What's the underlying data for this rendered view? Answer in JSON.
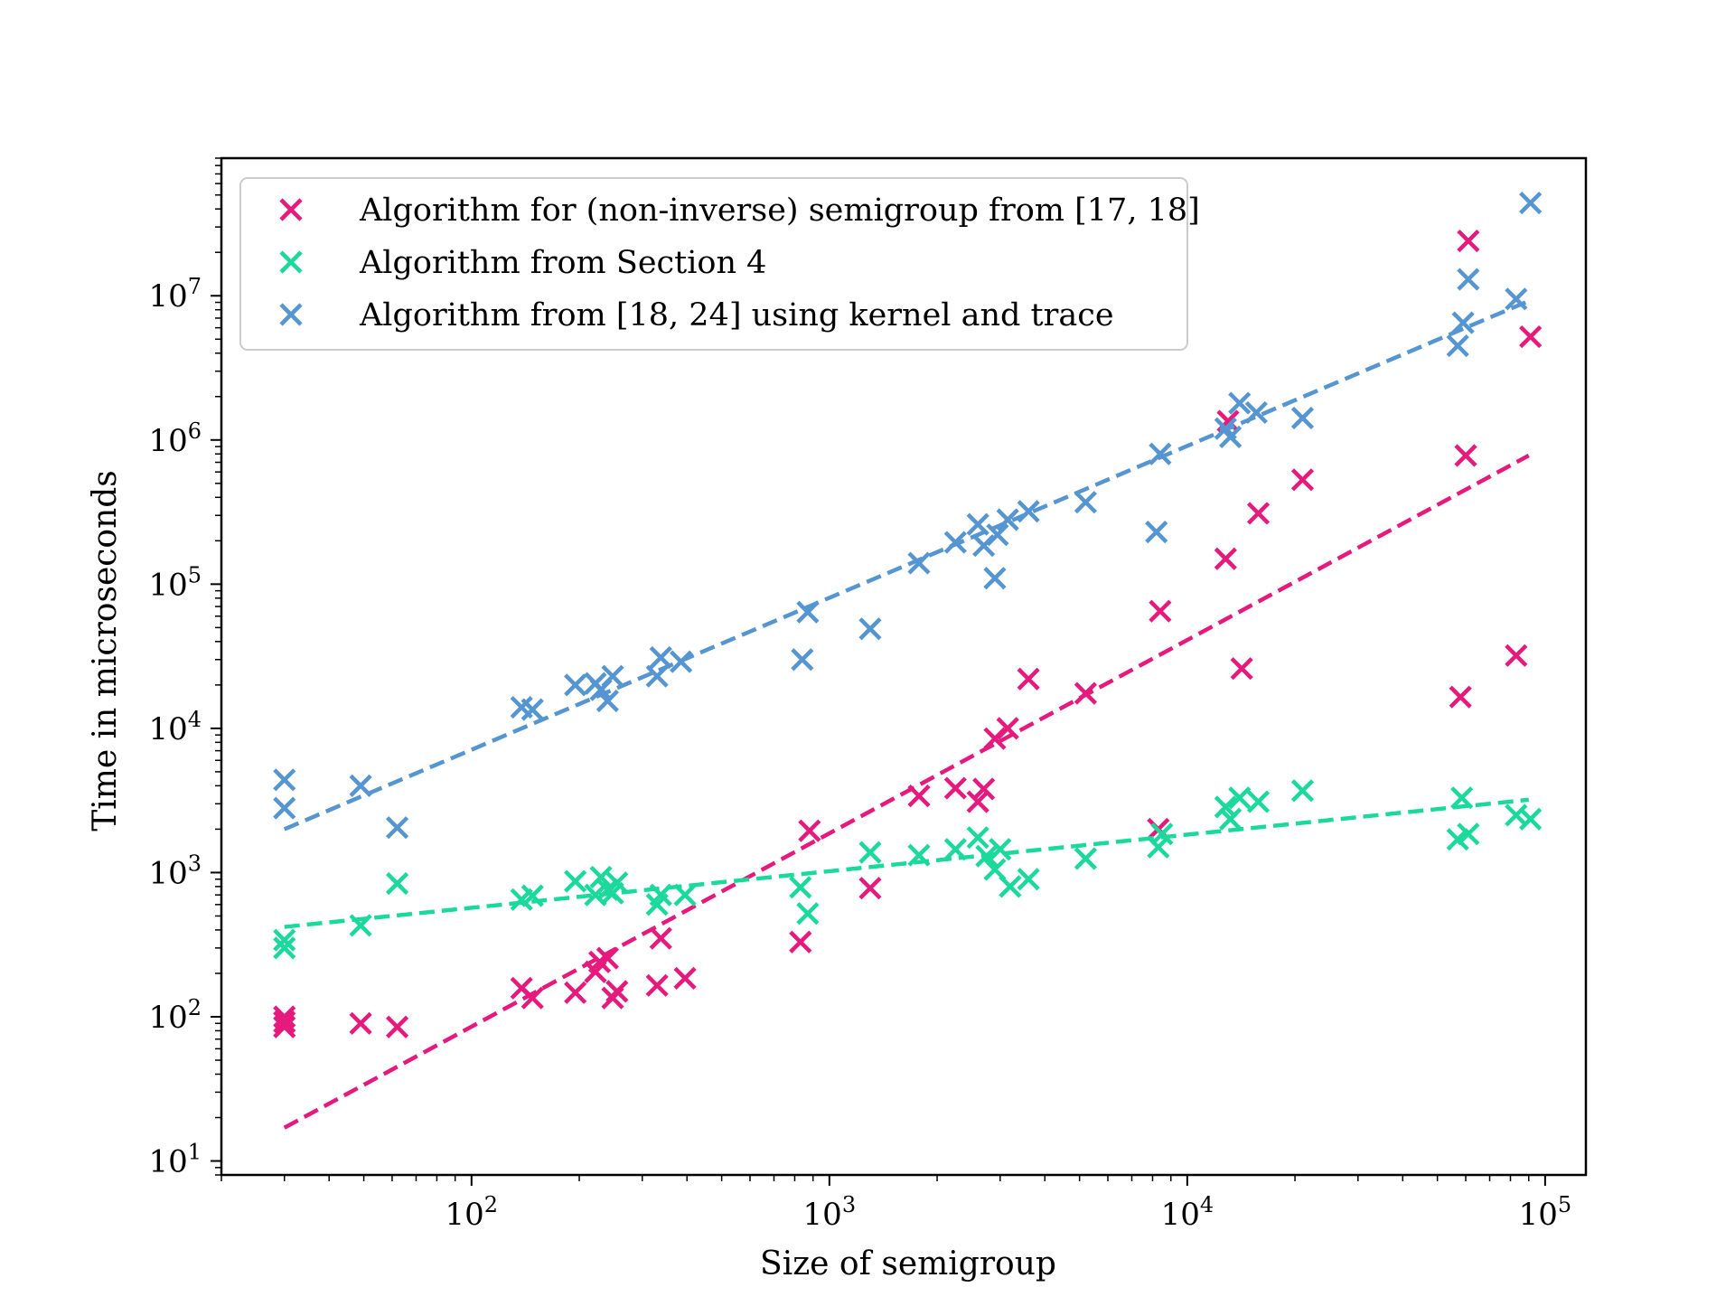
{
  "chart_data": {
    "type": "scatter",
    "title": "",
    "xlabel": "Size of semigroup",
    "ylabel": "Time in microseconds",
    "xscale": "log",
    "yscale": "log",
    "xlim": [
      20,
      130000
    ],
    "ylim": [
      8,
      90000000
    ],
    "grid": false,
    "legend_position": "top-left",
    "x_ticks": [
      {
        "value": 100,
        "base": "10",
        "exp": "2"
      },
      {
        "value": 1000,
        "base": "10",
        "exp": "3"
      },
      {
        "value": 10000,
        "base": "10",
        "exp": "4"
      },
      {
        "value": 100000,
        "base": "10",
        "exp": "5"
      }
    ],
    "y_ticks": [
      {
        "value": 10,
        "base": "10",
        "exp": "1"
      },
      {
        "value": 100,
        "base": "10",
        "exp": "2"
      },
      {
        "value": 1000,
        "base": "10",
        "exp": "3"
      },
      {
        "value": 10000,
        "base": "10",
        "exp": "4"
      },
      {
        "value": 100000,
        "base": "10",
        "exp": "5"
      },
      {
        "value": 1000000,
        "base": "10",
        "exp": "6"
      },
      {
        "value": 10000000,
        "base": "10",
        "exp": "7"
      }
    ],
    "series": [
      {
        "name": "Algorithm for (non-inverse) semigroup from [17, 18]",
        "color": "#e6197d",
        "marker": "x",
        "points": [
          [
            30,
            85
          ],
          [
            30,
            100
          ],
          [
            30,
            92
          ],
          [
            49,
            90
          ],
          [
            62,
            85
          ],
          [
            138,
            158
          ],
          [
            148,
            135
          ],
          [
            195,
            147
          ],
          [
            222,
            205
          ],
          [
            228,
            240
          ],
          [
            240,
            255
          ],
          [
            248,
            135
          ],
          [
            255,
            150
          ],
          [
            330,
            165
          ],
          [
            338,
            350
          ],
          [
            395,
            185
          ],
          [
            830,
            330
          ],
          [
            880,
            1950
          ],
          [
            1300,
            780
          ],
          [
            1780,
            3400
          ],
          [
            2250,
            3850
          ],
          [
            2600,
            3100
          ],
          [
            2700,
            3800
          ],
          [
            2900,
            8500
          ],
          [
            3150,
            10000
          ],
          [
            3600,
            22000
          ],
          [
            5200,
            17500
          ],
          [
            8300,
            2000
          ],
          [
            8400,
            65000
          ],
          [
            12800,
            150000
          ],
          [
            13000,
            1350000
          ],
          [
            14200,
            26000
          ],
          [
            15800,
            310000
          ],
          [
            21000,
            530000
          ],
          [
            58000,
            16500
          ],
          [
            60000,
            780000
          ],
          [
            61000,
            24000000
          ],
          [
            83000,
            32000
          ],
          [
            91000,
            5200000
          ]
        ],
        "trend": {
          "x": [
            30,
            90000
          ],
          "y": [
            17,
            780000
          ]
        }
      },
      {
        "name": "Algorithm from Section 4",
        "color": "#1ad99a",
        "marker": "x",
        "points": [
          [
            30,
            300
          ],
          [
            30,
            340
          ],
          [
            49,
            430
          ],
          [
            62,
            840
          ],
          [
            138,
            650
          ],
          [
            148,
            690
          ],
          [
            195,
            870
          ],
          [
            222,
            700
          ],
          [
            230,
            930
          ],
          [
            240,
            760
          ],
          [
            248,
            720
          ],
          [
            255,
            850
          ],
          [
            330,
            600
          ],
          [
            338,
            700
          ],
          [
            395,
            700
          ],
          [
            830,
            790
          ],
          [
            870,
            520
          ],
          [
            1300,
            1380
          ],
          [
            1780,
            1320
          ],
          [
            2250,
            1450
          ],
          [
            2600,
            1750
          ],
          [
            2750,
            1300
          ],
          [
            2900,
            1050
          ],
          [
            3000,
            1450
          ],
          [
            3200,
            800
          ],
          [
            3600,
            900
          ],
          [
            5200,
            1250
          ],
          [
            8300,
            1500
          ],
          [
            8500,
            1850
          ],
          [
            12800,
            2850
          ],
          [
            13200,
            2350
          ],
          [
            14000,
            3300
          ],
          [
            15800,
            3100
          ],
          [
            21000,
            3700
          ],
          [
            57000,
            1700
          ],
          [
            58500,
            3300
          ],
          [
            61000,
            1850
          ],
          [
            83000,
            2500
          ],
          [
            91000,
            2350
          ]
        ],
        "trend": {
          "x": [
            30,
            90000
          ],
          "y": [
            420,
            3200
          ]
        }
      },
      {
        "name": "Algorithm from [18, 24] using kernel and trace",
        "color": "#5595d1",
        "marker": "x",
        "points": [
          [
            30,
            4400
          ],
          [
            30,
            2800
          ],
          [
            49,
            4000
          ],
          [
            62,
            2050
          ],
          [
            138,
            14000
          ],
          [
            148,
            13500
          ],
          [
            195,
            20000
          ],
          [
            222,
            20500
          ],
          [
            230,
            18500
          ],
          [
            240,
            15500
          ],
          [
            248,
            23000
          ],
          [
            330,
            23000
          ],
          [
            338,
            31000
          ],
          [
            385,
            29000
          ],
          [
            840,
            30000
          ],
          [
            870,
            64000
          ],
          [
            1300,
            49000
          ],
          [
            1780,
            140000
          ],
          [
            2250,
            195000
          ],
          [
            2600,
            260000
          ],
          [
            2700,
            185000
          ],
          [
            2900,
            110000
          ],
          [
            2950,
            220000
          ],
          [
            3150,
            280000
          ],
          [
            3600,
            320000
          ],
          [
            5200,
            370000
          ],
          [
            8200,
            230000
          ],
          [
            8400,
            800000
          ],
          [
            12800,
            1200000
          ],
          [
            13200,
            1050000
          ],
          [
            14000,
            1800000
          ],
          [
            15600,
            1550000
          ],
          [
            21000,
            1420000
          ],
          [
            57000,
            4500000
          ],
          [
            59000,
            6500000
          ],
          [
            61000,
            13000000
          ],
          [
            83000,
            9500000
          ],
          [
            91000,
            44000000
          ]
        ],
        "trend": {
          "x": [
            30,
            90000
          ],
          "y": [
            2000,
            9200000
          ]
        }
      }
    ]
  }
}
